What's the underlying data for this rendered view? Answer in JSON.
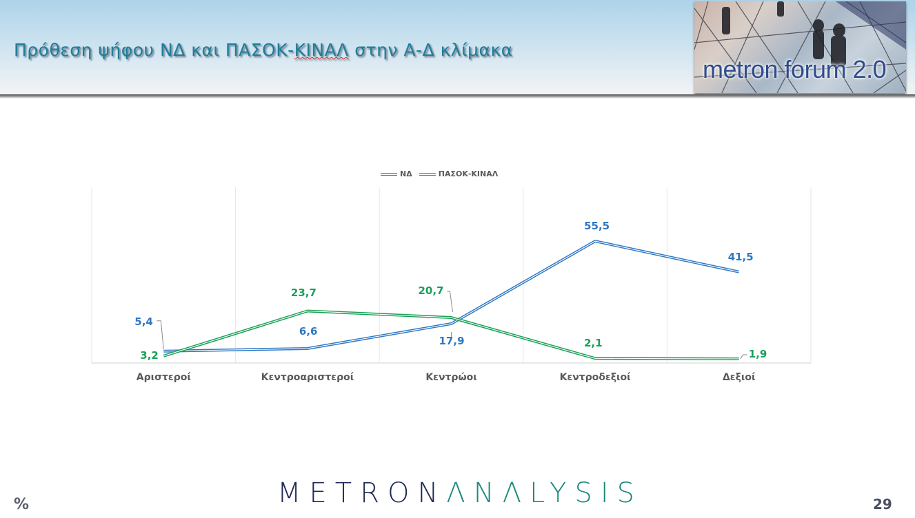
{
  "header": {
    "title_part1": "Πρόθεση ψήφου ΝΔ και ΠΑΣΟΚ-",
    "title_spell": "ΚΙΝΑΛ",
    "title_part2": " στην Α-Δ κλίμακα",
    "logo_text": "metron forum 2.0"
  },
  "colors": {
    "nd": "#2e78c4",
    "pasok": "#1aa058",
    "title": "#1f7d9a",
    "axis_label": "#595959",
    "gridline": "#e6e6e6"
  },
  "chart_data": {
    "type": "line",
    "title": "Πρόθεση ψήφου ΝΔ και ΠΑΣΟΚ-ΚΙΝΑΛ στην Α-Δ κλίμακα",
    "xlabel": "",
    "ylabel": "%",
    "categories": [
      "Αριστεροί",
      "Κεντροαριστεροί",
      "Κεντρώοι",
      "Κεντροδεξιοί",
      "Δεξιοί"
    ],
    "series": [
      {
        "name": "ΝΔ",
        "values": [
          5.4,
          6.6,
          17.9,
          55.5,
          41.5
        ],
        "labels": [
          "5,4",
          "6,6",
          "17,9",
          "55,5",
          "41,5"
        ],
        "color": "#2e78c4"
      },
      {
        "name": "ΠΑΣΟΚ-ΚΙΝΑΛ",
        "values": [
          3.2,
          23.7,
          20.7,
          2.1,
          1.9
        ],
        "labels": [
          "3,2",
          "23,7",
          "20,7",
          "2,1",
          "1,9"
        ],
        "color": "#1aa058"
      }
    ],
    "ylim": [
      0,
      80
    ],
    "grid": "vertical",
    "legend_position": "top",
    "data_labels": true
  },
  "legend": {
    "items": [
      {
        "label": "ΝΔ"
      },
      {
        "label": "ΠΑΣΟΚ-ΚΙΝΑΛ"
      }
    ]
  },
  "footer": {
    "unit": "%",
    "brand_part1": "METRON",
    "brand_part2": "ΛNΛLYSIS",
    "page_number": "29"
  }
}
